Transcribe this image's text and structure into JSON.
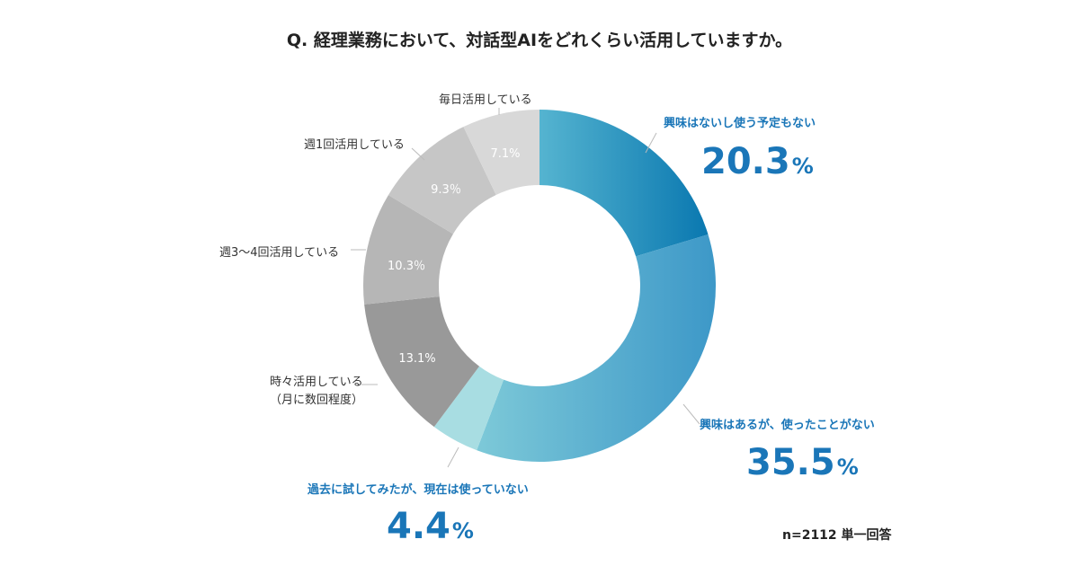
{
  "chart_data": {
    "type": "pie",
    "title": "Q. 経理業務において、対話型AIをどれくらい活用していますか。",
    "categories": [
      "興味はないし使う予定もない",
      "興味はあるが、使ったことがない",
      "過去に試してみたが、現在は使っていない",
      "時々活用している（月に数回程度）",
      "週3〜4回活用している",
      "週1回活用している",
      "毎日活用している"
    ],
    "values": [
      20.3,
      35.5,
      4.4,
      13.1,
      10.3,
      9.3,
      7.1
    ],
    "value_labels": [
      "20.3",
      "35.5",
      "4.4",
      "13.1%",
      "10.3％",
      "9.3％",
      "7.1%"
    ],
    "unit": "%",
    "note": "n=2112 単一回答"
  },
  "labels": {
    "seg4_line1": "時々活用している",
    "seg4_line2": "（月に数回程度）"
  },
  "colors": {
    "accent": "#1a76b8",
    "seg0": [
      "#55b4d0",
      "#0a78b0"
    ],
    "seg1": [
      "#7dc9d8",
      "#3d98c8"
    ],
    "seg2": "#a8dde2",
    "seg3": "#999999",
    "seg4": "#b6b6b6",
    "seg5": "#c6c6c6",
    "seg6": "#d8d8d8"
  }
}
